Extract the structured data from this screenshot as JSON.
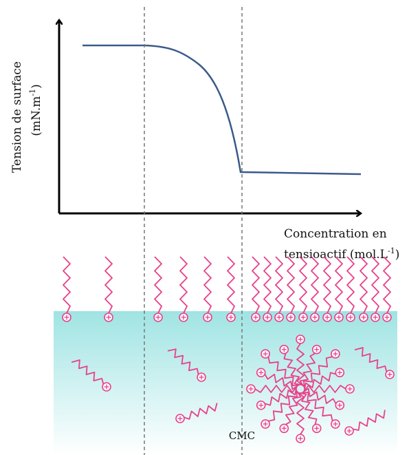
{
  "y_axis_label": {
    "line1": "Tension de surface",
    "line2": {
      "text": "(mN.m",
      "superscript": "-1",
      "closing": ")"
    }
  },
  "x_axis_label": {
    "line1": "Concentration en",
    "line2": {
      "text": "tensioactif (mol.L",
      "superscript": "-1",
      "closing": ")"
    }
  },
  "cmc_label": "CMC"
}
